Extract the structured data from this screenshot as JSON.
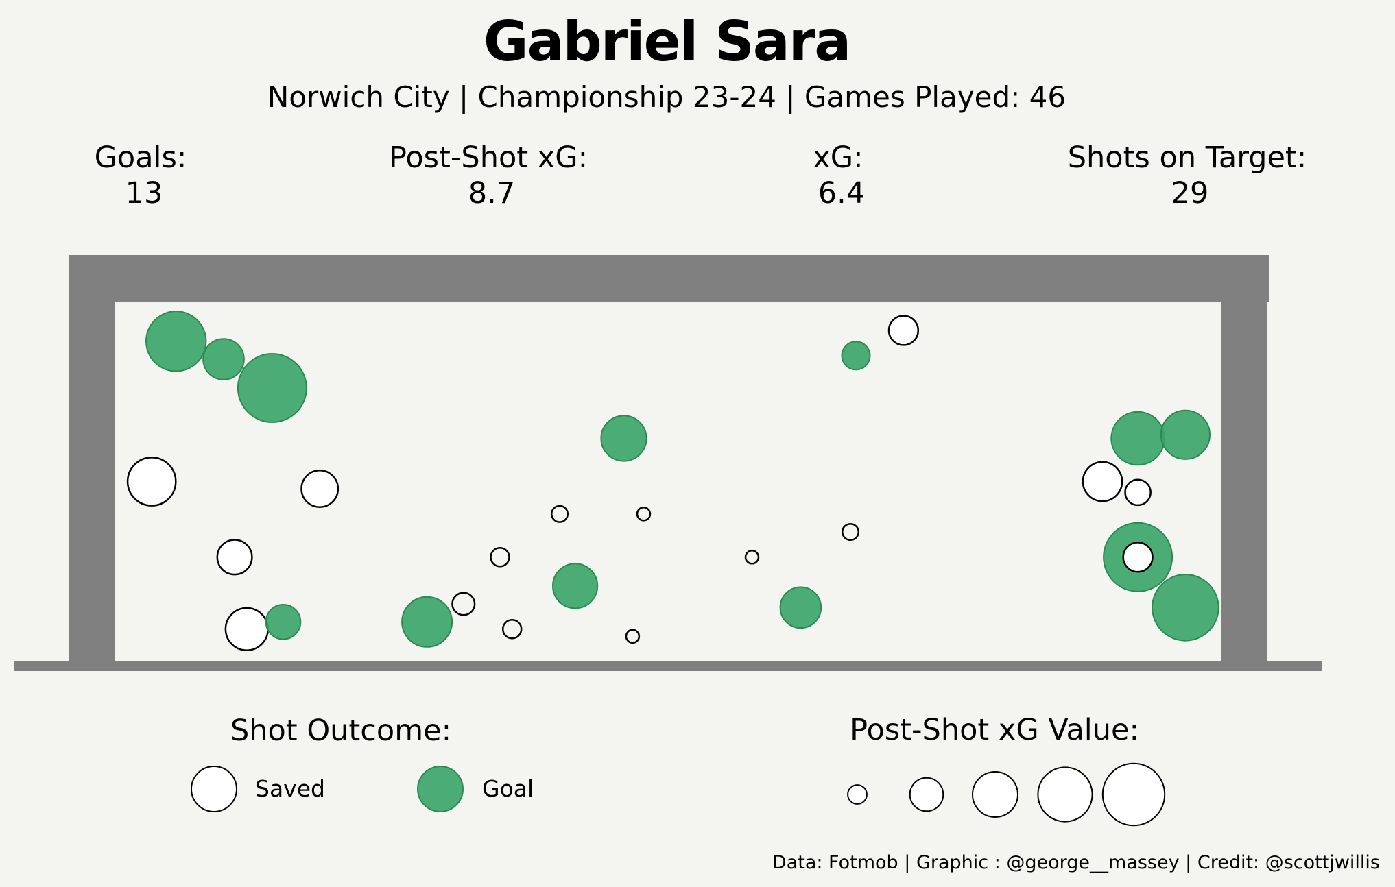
{
  "title": "Gabriel Sara",
  "subtitle": "Norwich City | Championship 23-24 | Games Played: 46",
  "stats": [
    {
      "label": "Goals:",
      "value": "13"
    },
    {
      "label": "Post-Shot xG:",
      "value": "8.7"
    },
    {
      "label": "xG:",
      "value": "6.4"
    },
    {
      "label": "Shots on Target:",
      "value": "29"
    }
  ],
  "legend": {
    "outcome_title": "Shot Outcome:",
    "saved_label": "Saved",
    "goal_label": "Goal",
    "size_title": "Post-Shot xG Value:"
  },
  "footer": "Data: Fotmob | Graphic : @george__massey | Credit: @scottjwillis",
  "colors": {
    "background": "#f4f4f0",
    "goal_frame": "#808080",
    "goal_fill": "#3aa468",
    "goal_stroke": "#2a8a52",
    "saved_fill": "#ffffff",
    "saved_stroke": "#000000"
  },
  "chart_data": {
    "type": "scatter",
    "x_range": [
      0,
      1
    ],
    "y_range": [
      0,
      1
    ],
    "size_legend_values": [
      0.05,
      0.2,
      0.4,
      0.6,
      0.8
    ],
    "shots": [
      {
        "x": 0.055,
        "y": 0.89,
        "xg": 0.52,
        "outcome": "Goal"
      },
      {
        "x": 0.098,
        "y": 0.84,
        "xg": 0.22,
        "outcome": "Goal"
      },
      {
        "x": 0.142,
        "y": 0.76,
        "xg": 0.7,
        "outcome": "Goal"
      },
      {
        "x": 0.033,
        "y": 0.5,
        "xg": 0.32,
        "outcome": "Saved"
      },
      {
        "x": 0.185,
        "y": 0.48,
        "xg": 0.17,
        "outcome": "Saved"
      },
      {
        "x": 0.108,
        "y": 0.29,
        "xg": 0.15,
        "outcome": "Saved"
      },
      {
        "x": 0.119,
        "y": 0.09,
        "xg": 0.24,
        "outcome": "Saved"
      },
      {
        "x": 0.152,
        "y": 0.11,
        "xg": 0.15,
        "outcome": "Goal"
      },
      {
        "x": 0.282,
        "y": 0.11,
        "xg": 0.35,
        "outcome": "Goal"
      },
      {
        "x": 0.315,
        "y": 0.16,
        "xg": 0.05,
        "outcome": "Saved"
      },
      {
        "x": 0.348,
        "y": 0.29,
        "xg": 0.03,
        "outcome": "Saved"
      },
      {
        "x": 0.359,
        "y": 0.09,
        "xg": 0.03,
        "outcome": "Saved"
      },
      {
        "x": 0.402,
        "y": 0.41,
        "xg": 0.02,
        "outcome": "Saved"
      },
      {
        "x": 0.46,
        "y": 0.62,
        "xg": 0.28,
        "outcome": "Goal"
      },
      {
        "x": 0.416,
        "y": 0.21,
        "xg": 0.27,
        "outcome": "Goal"
      },
      {
        "x": 0.478,
        "y": 0.41,
        "xg": 0.01,
        "outcome": "Saved"
      },
      {
        "x": 0.468,
        "y": 0.07,
        "xg": 0.01,
        "outcome": "Saved"
      },
      {
        "x": 0.576,
        "y": 0.29,
        "xg": 0.01,
        "outcome": "Saved"
      },
      {
        "x": 0.67,
        "y": 0.85,
        "xg": 0.09,
        "outcome": "Goal"
      },
      {
        "x": 0.713,
        "y": 0.92,
        "xg": 0.1,
        "outcome": "Saved"
      },
      {
        "x": 0.665,
        "y": 0.36,
        "xg": 0.02,
        "outcome": "Saved"
      },
      {
        "x": 0.62,
        "y": 0.15,
        "xg": 0.22,
        "outcome": "Goal"
      },
      {
        "x": 0.925,
        "y": 0.62,
        "xg": 0.4,
        "outcome": "Goal"
      },
      {
        "x": 0.968,
        "y": 0.63,
        "xg": 0.33,
        "outcome": "Goal"
      },
      {
        "x": 0.893,
        "y": 0.5,
        "xg": 0.2,
        "outcome": "Saved"
      },
      {
        "x": 0.925,
        "y": 0.47,
        "xg": 0.07,
        "outcome": "Saved"
      },
      {
        "x": 0.925,
        "y": 0.29,
        "xg": 0.7,
        "outcome": "Goal"
      },
      {
        "x": 0.925,
        "y": 0.29,
        "xg": 0.1,
        "outcome": "Saved"
      },
      {
        "x": 0.968,
        "y": 0.15,
        "xg": 0.65,
        "outcome": "Goal"
      }
    ]
  }
}
